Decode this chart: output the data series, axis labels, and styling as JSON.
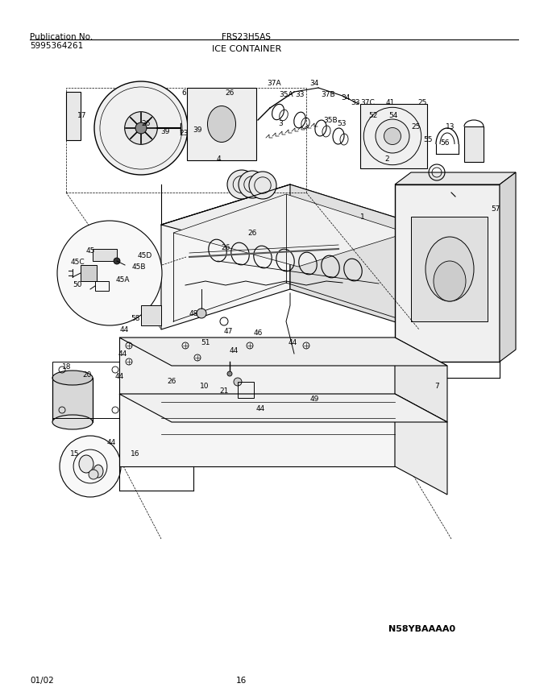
{
  "title_left_1": "Publication No.",
  "title_left_2": "5995364261",
  "title_center": "FRS23H5AS",
  "subtitle": "ICE CONTAINER",
  "footer_left": "01/02",
  "footer_center": "16",
  "watermark": "N58YBAAAA0",
  "bg_color": "#ffffff",
  "line_color": "#000000",
  "text_color": "#000000",
  "fig_width": 6.8,
  "fig_height": 8.69,
  "dpi": 100
}
